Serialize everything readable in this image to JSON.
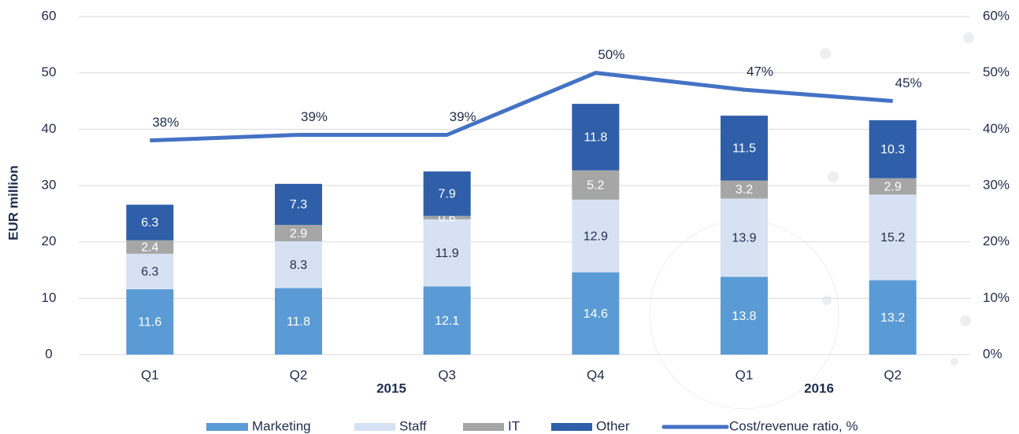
{
  "chart_data": {
    "type": "bar",
    "stacked": true,
    "categories": [
      "Q1",
      "Q2",
      "Q3",
      "Q4",
      "Q1",
      "Q2"
    ],
    "x_groups": [
      "2015",
      "2016"
    ],
    "ylabel": "EUR million",
    "ylim": [
      0,
      60
    ],
    "yticks": [
      0,
      10,
      20,
      30,
      40,
      50,
      60
    ],
    "y2lim": [
      0,
      60
    ],
    "y2ticks": [
      {
        "value": 0,
        "label": "0%"
      },
      {
        "value": 10,
        "label": "10%"
      },
      {
        "value": 20,
        "label": "20%"
      },
      {
        "value": 30,
        "label": "30%"
      },
      {
        "value": 40,
        "label": "40%"
      },
      {
        "value": 50,
        "label": "50%"
      },
      {
        "value": 60,
        "label": "60%"
      }
    ],
    "grid": true,
    "legend": "bottom",
    "series": [
      {
        "name": "Marketing",
        "color": "#5b9bd5",
        "label_color": "#ffffff",
        "values": [
          11.6,
          11.8,
          12.1,
          14.6,
          13.8,
          13.2
        ]
      },
      {
        "name": "Staff",
        "color": "#d6e2f3",
        "label_color": "#1f2d4d",
        "values": [
          6.3,
          8.3,
          11.9,
          12.9,
          13.9,
          15.2
        ]
      },
      {
        "name": "IT",
        "color": "#a6a6a6",
        "label_color": "#ffffff",
        "values": [
          2.4,
          2.9,
          0.6,
          5.2,
          3.2,
          2.9
        ]
      },
      {
        "name": "Other",
        "color": "#2f5fa8",
        "label_color": "#ffffff",
        "values": [
          6.3,
          7.3,
          7.9,
          11.8,
          11.5,
          10.3
        ]
      },
      {
        "name": "Cost/revenue ratio, %",
        "type": "line",
        "axis": "y2",
        "color": "#4472c4",
        "values": [
          38,
          39,
          39,
          50,
          47,
          45
        ],
        "value_labels": [
          "38%",
          "39%",
          "39%",
          "50%",
          "47%",
          "45%"
        ]
      }
    ]
  }
}
